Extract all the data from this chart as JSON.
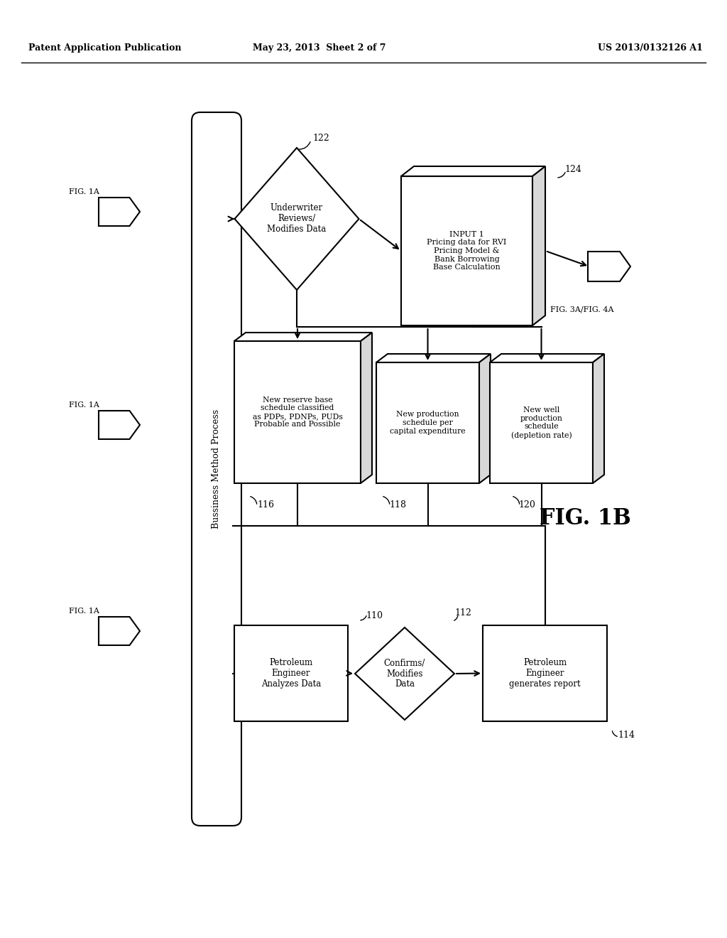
{
  "header_left": "Patent Application Publication",
  "header_center": "May 23, 2013  Sheet 2 of 7",
  "header_right": "US 2013/0132126 A1",
  "fig_label": "FIG. 1B",
  "vertical_bar_label": "Bussiness Method Process",
  "box_110_text": "Petroleum\nEngineer\nAnalyzes Data",
  "box_110_label": "110",
  "diamond_112_text": "Confirms/\nModifies\nData",
  "diamond_112_label": "112",
  "box_114_text": "Petroleum\nEngineer\ngenerates report",
  "box_114_label": "114",
  "box_116_text": "New reserve base\nschedule classified\nas PDPs, PDNPs, PUDs\nProbable and Possible",
  "box_116_label": "116",
  "box_118_text": "New production\nschedule per\ncapital expenditure",
  "box_118_label": "118",
  "box_120_text": "New well\nproduction\nschedule\n(depletion rate)",
  "box_120_label": "120",
  "diamond_122_text": "Underwriter\nReviews/\nModifies Data",
  "diamond_122_label": "122",
  "box_124_text": "INPUT 1\nPricing data for RVI\nPricing Model &\nBank Borrowing\nBase Calculation",
  "box_124_label": "124",
  "fig_3a_label": "FIG. 3A/FIG. 4A",
  "bg_color": "#ffffff",
  "line_color": "#000000",
  "text_color": "#000000"
}
